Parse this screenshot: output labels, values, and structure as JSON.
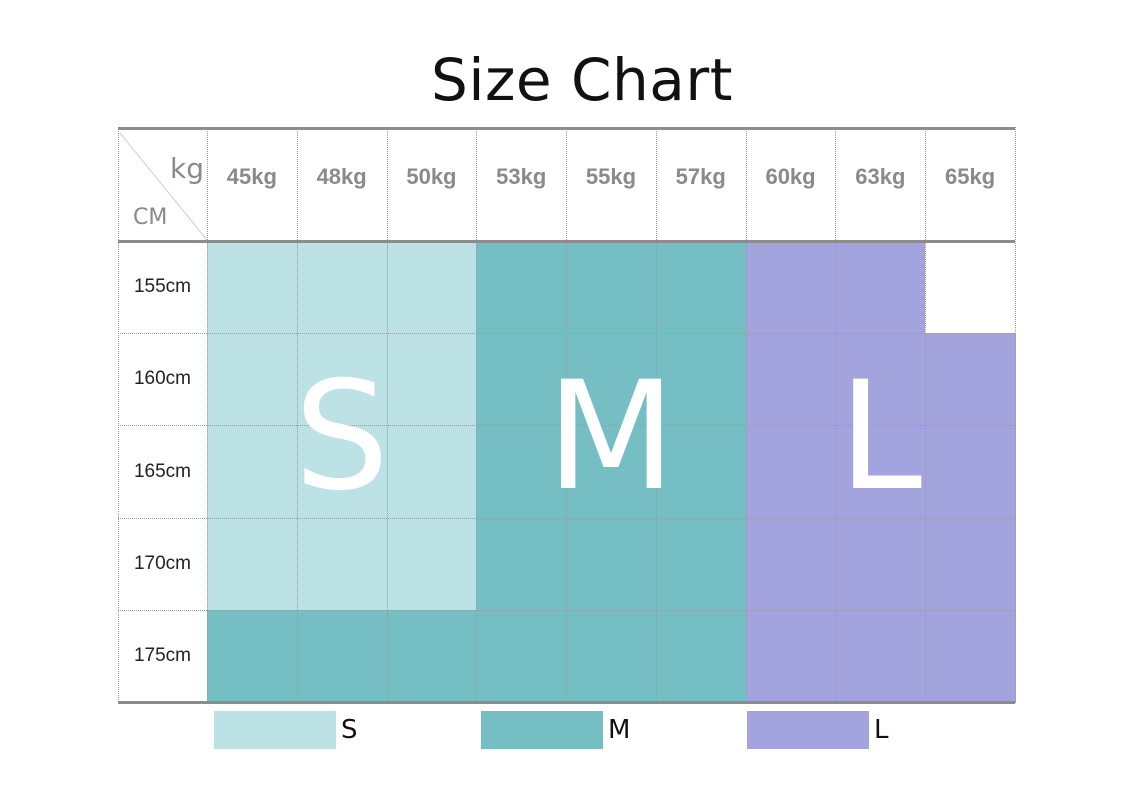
{
  "title": "Size Chart",
  "corner": {
    "weight_unit": "kg",
    "height_unit": "CM"
  },
  "colors": {
    "S": "#bde2e5",
    "M": "#74bec4",
    "L": "#a3a3dd",
    "none": "#ffffff"
  },
  "chart_data": {
    "type": "table",
    "title": "Size Chart",
    "columns": [
      "45kg",
      "48kg",
      "50kg",
      "53kg",
      "55kg",
      "57kg",
      "60kg",
      "63kg",
      "65kg"
    ],
    "rows": [
      "155cm",
      "160cm",
      "165cm",
      "170cm",
      "175cm"
    ],
    "cells": [
      [
        "S",
        "S",
        "S",
        "M",
        "M",
        "M",
        "L",
        "L",
        ""
      ],
      [
        "S",
        "S",
        "S",
        "M",
        "M",
        "M",
        "L",
        "L",
        "L"
      ],
      [
        "S",
        "S",
        "S",
        "M",
        "M",
        "M",
        "L",
        "L",
        "L"
      ],
      [
        "S",
        "S",
        "S",
        "M",
        "M",
        "M",
        "L",
        "L",
        "L"
      ],
      [
        "M",
        "M",
        "M",
        "M",
        "M",
        "M",
        "L",
        "L",
        "L"
      ]
    ],
    "region_labels": [
      "S",
      "M",
      "L"
    ],
    "legend": [
      {
        "label": "S",
        "color": "#bde2e5"
      },
      {
        "label": "M",
        "color": "#74bec4"
      },
      {
        "label": "L",
        "color": "#a3a3dd"
      }
    ]
  }
}
